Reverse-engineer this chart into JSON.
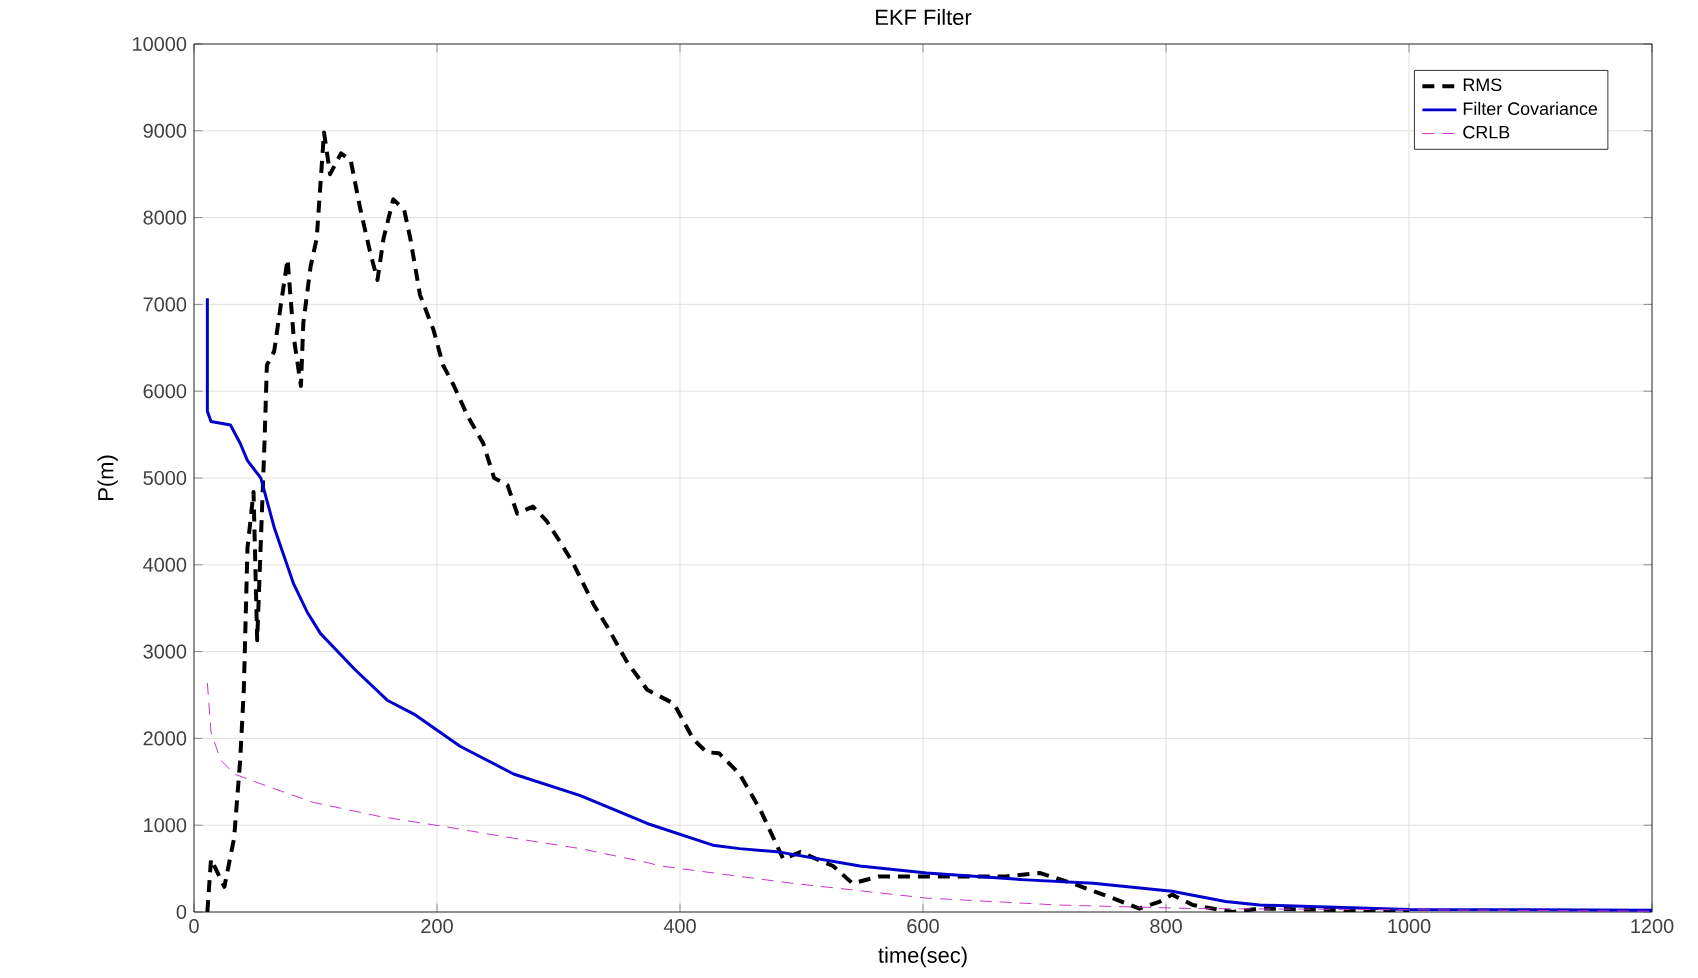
{
  "chart_data": {
    "type": "line",
    "title": "EKF Filter",
    "xlabel": "time(sec)",
    "ylabel": "P(m)",
    "xlim": [
      0,
      1200
    ],
    "ylim": [
      0,
      10000
    ],
    "xticks": [
      0,
      200,
      400,
      600,
      800,
      1000,
      1200
    ],
    "yticks": [
      0,
      1000,
      2000,
      3000,
      4000,
      5000,
      6000,
      7000,
      8000,
      9000,
      10000
    ],
    "grid": true,
    "legend": "top right",
    "series": [
      {
        "name": "RMS",
        "color": "#000000",
        "line_style": "dashed",
        "x": [
          11,
          14,
          25,
          33,
          38,
          41,
          44,
          49,
          52,
          58,
          60,
          66,
          71,
          77,
          82,
          88,
          90,
          96,
          101,
          107,
          112,
          121,
          129,
          137,
          145,
          151,
          156,
          164,
          173,
          178,
          186,
          197,
          205,
          214,
          225,
          238,
          247,
          258,
          266,
          279,
          290,
          301,
          312,
          329,
          340,
          356,
          373,
          395,
          411,
          422,
          432,
          449,
          466,
          477,
          485,
          499,
          526,
          542,
          564,
          603,
          636,
          668,
          696,
          723,
          756,
          778,
          795,
          805,
          822,
          855,
          877,
          950,
          1000
        ],
        "values": [
          0,
          610,
          290,
          850,
          1750,
          2560,
          4190,
          4840,
          3130,
          5400,
          6300,
          6460,
          6950,
          7520,
          6630,
          6060,
          6790,
          7440,
          7760,
          8980,
          8500,
          8740,
          8660,
          8090,
          7600,
          7280,
          7760,
          8210,
          8090,
          7760,
          7110,
          6710,
          6300,
          6060,
          5720,
          5400,
          5000,
          4920,
          4590,
          4670,
          4510,
          4270,
          4020,
          3540,
          3290,
          2890,
          2560,
          2400,
          1990,
          1840,
          1830,
          1590,
          1180,
          850,
          610,
          690,
          530,
          330,
          410,
          410,
          410,
          410,
          450,
          330,
          160,
          40,
          120,
          200,
          80,
          0,
          40,
          20,
          10
        ]
      },
      {
        "name": "Filter Covariance",
        "color": "#0000cc",
        "line_style": "solid",
        "x": [
          11,
          11,
          14,
          30,
          38,
          44,
          55,
          66,
          82,
          93,
          104,
          132,
          159,
          181,
          219,
          263,
          318,
          373,
          427,
          449,
          482,
          548,
          603,
          685,
          740,
          805,
          849,
          877,
          1000,
          1200
        ],
        "values": [
          7070,
          5770,
          5650,
          5610,
          5400,
          5200,
          5000,
          4430,
          3780,
          3460,
          3210,
          2800,
          2440,
          2280,
          1910,
          1590,
          1340,
          1020,
          770,
          730,
          690,
          530,
          450,
          370,
          330,
          240,
          120,
          80,
          30,
          20
        ]
      },
      {
        "name": "CRLB",
        "color": "#cc33cc",
        "line_style": "dashed",
        "x": [
          11,
          14,
          22,
          33,
          66,
          99,
          153,
          208,
          263,
          318,
          373,
          384,
          449,
          493,
          603,
          712,
          822,
          1200
        ],
        "values": [
          2640,
          2070,
          1750,
          1590,
          1420,
          1260,
          1100,
          980,
          850,
          730,
          570,
          530,
          410,
          330,
          160,
          80,
          40,
          10
        ]
      }
    ]
  }
}
